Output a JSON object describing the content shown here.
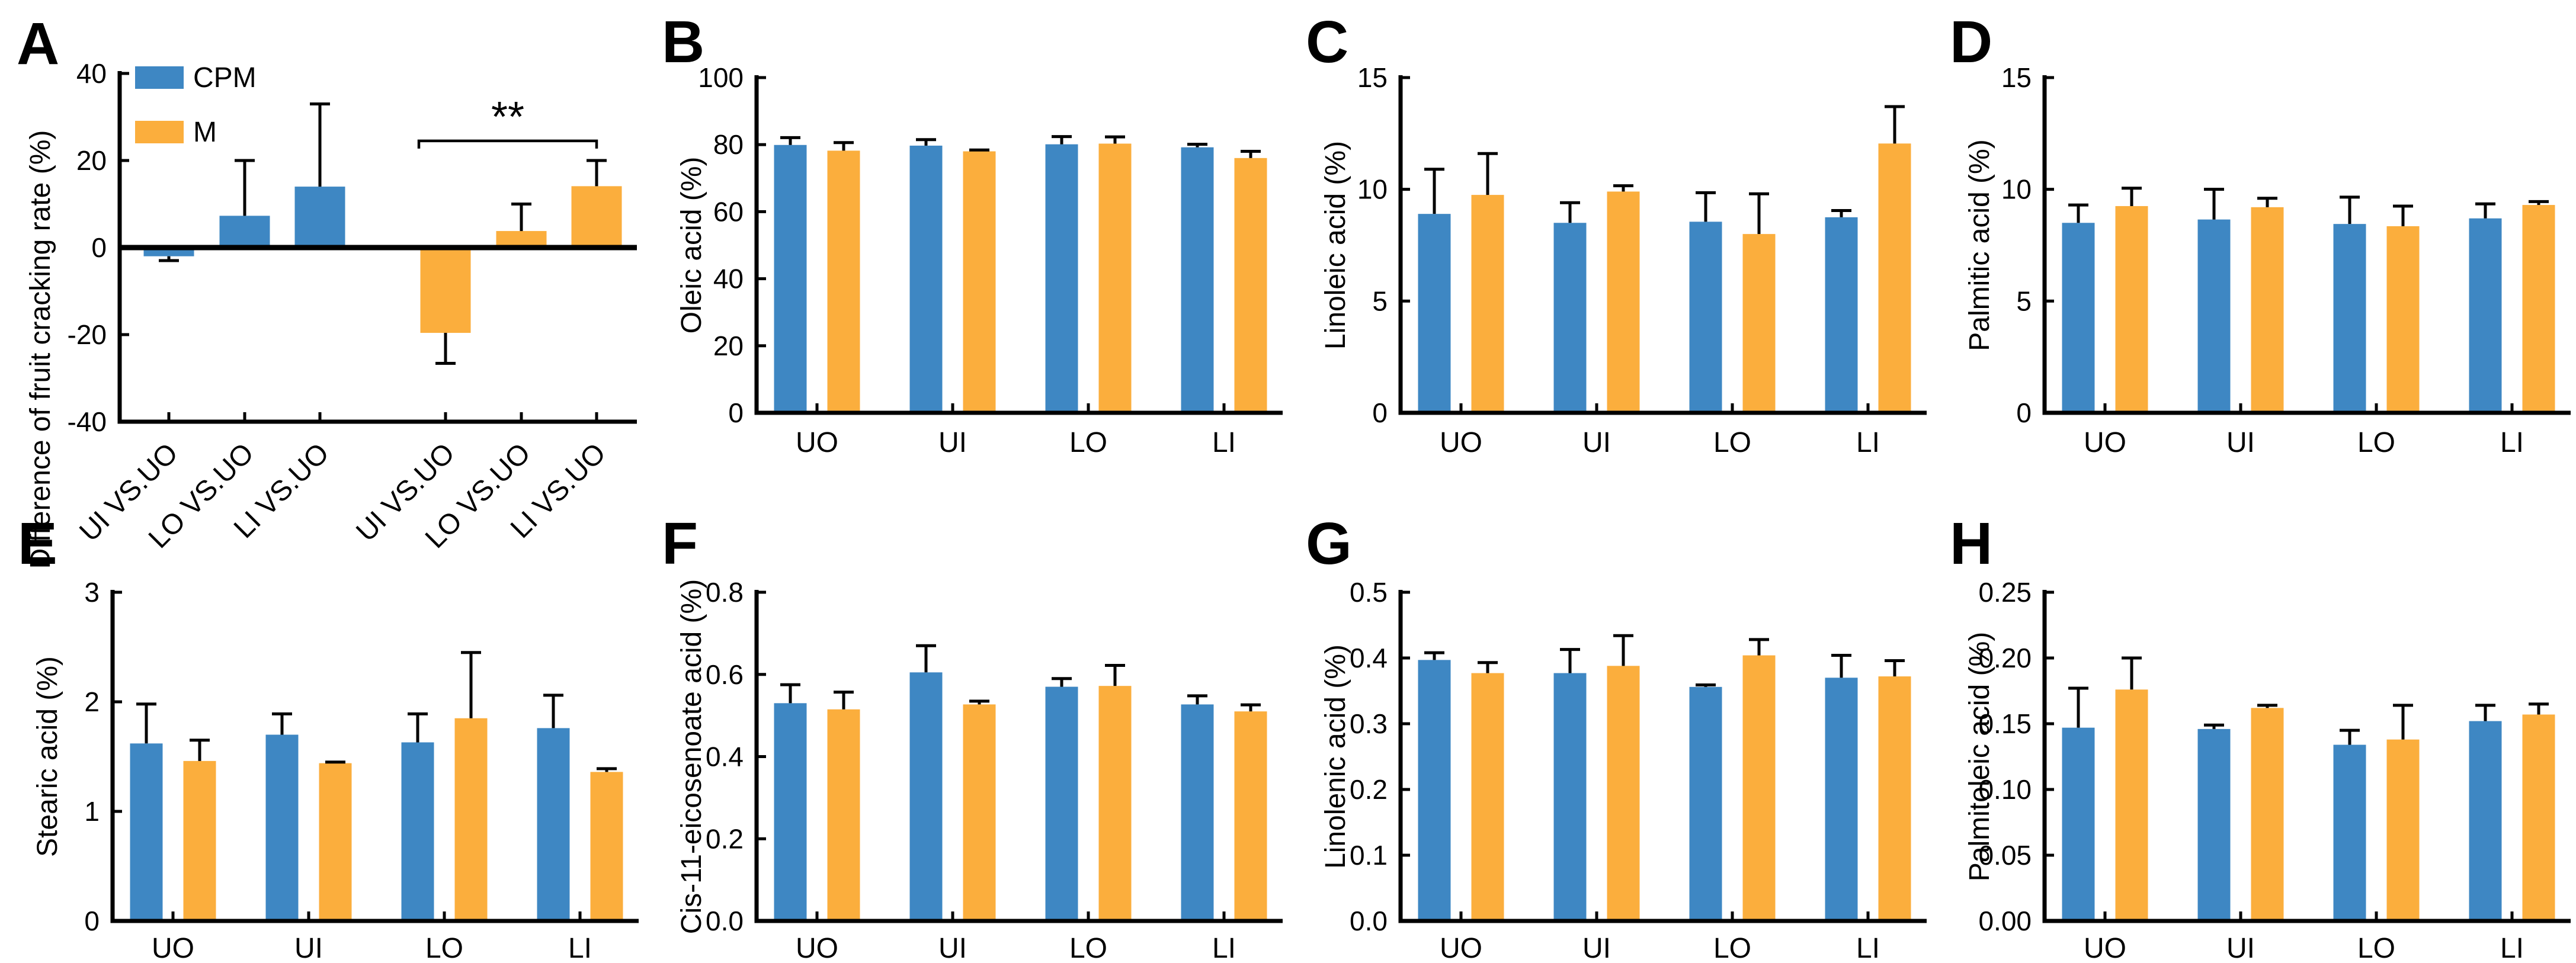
{
  "figure": {
    "background": "#ffffff",
    "axis_color": "#000000",
    "legend": [
      {
        "name": "CPM",
        "color": "#3E87C3"
      },
      {
        "name": "M",
        "color": "#FBAE3D"
      }
    ]
  },
  "chart_data": [
    {
      "panel": "A",
      "type": "bar",
      "ylabel": "Difference of fruit cracking rate (%)",
      "ylim": [
        -40,
        40
      ],
      "yticks": [
        -40,
        -20,
        0,
        20,
        40
      ],
      "ytick_labels": [
        "-40",
        "-20",
        "0",
        "20",
        "40"
      ],
      "categories": [
        "UI VS.UO",
        "LO VS.UO",
        "LI VS.UO",
        "UI VS.UO",
        "LO VS.UO",
        "LI VS.UO"
      ],
      "xtick_rotation": 45,
      "show_legend": true,
      "bars": [
        {
          "series": "CPM",
          "category": "UI VS.UO",
          "value": -2.0,
          "err": 1.0
        },
        {
          "series": "CPM",
          "category": "LO VS.UO",
          "value": 7.3,
          "err": 12.7
        },
        {
          "series": "CPM",
          "category": "LI VS.UO",
          "value": 14.0,
          "err": 19.0
        },
        {
          "series": "M",
          "category": "UI VS.UO",
          "value": -19.6,
          "err": 7.0
        },
        {
          "series": "M",
          "category": "LO VS.UO",
          "value": 3.8,
          "err": 6.2
        },
        {
          "series": "M",
          "category": "LI VS.UO",
          "value": 14.1,
          "err": 5.9
        }
      ],
      "significance": {
        "label": "**",
        "from_index": 3,
        "to_index": 5,
        "y_value": 24.5
      }
    },
    {
      "panel": "B",
      "type": "bar",
      "ylabel": "Oleic acid (%)",
      "ylim": [
        0,
        100
      ],
      "yticks": [
        0,
        20,
        40,
        60,
        80,
        100
      ],
      "ytick_labels": [
        "0",
        "20",
        "40",
        "60",
        "80",
        "100"
      ],
      "categories": [
        "UO",
        "UI",
        "LO",
        "LI"
      ],
      "series": [
        {
          "name": "CPM",
          "values": [
            79.9,
            79.7,
            80.1,
            79.2
          ],
          "errors": [
            2.2,
            1.8,
            2.3,
            0.9
          ]
        },
        {
          "name": "M",
          "values": [
            78.2,
            78.0,
            80.3,
            76.0
          ],
          "errors": [
            2.4,
            0.4,
            2.0,
            2.0
          ]
        }
      ]
    },
    {
      "panel": "C",
      "type": "bar",
      "ylabel": "Linoleic acid (%)",
      "ylim": [
        0,
        15
      ],
      "yticks": [
        0,
        5,
        10,
        15
      ],
      "ytick_labels": [
        "0",
        "5",
        "10",
        "15"
      ],
      "categories": [
        "UO",
        "UI",
        "LO",
        "LI"
      ],
      "series": [
        {
          "name": "CPM",
          "values": [
            8.9,
            8.5,
            8.55,
            8.75
          ],
          "errors": [
            2.0,
            0.9,
            1.3,
            0.3
          ]
        },
        {
          "name": "M",
          "values": [
            9.75,
            9.9,
            8.0,
            12.05
          ],
          "errors": [
            1.85,
            0.26,
            1.8,
            1.65
          ]
        }
      ]
    },
    {
      "panel": "D",
      "type": "bar",
      "ylabel": "Palmitic acid (%)",
      "ylim": [
        0,
        15
      ],
      "yticks": [
        0,
        5,
        10,
        15
      ],
      "ytick_labels": [
        "0",
        "5",
        "10",
        "15"
      ],
      "categories": [
        "UO",
        "UI",
        "LO",
        "LI"
      ],
      "series": [
        {
          "name": "CPM",
          "values": [
            8.5,
            8.65,
            8.45,
            8.7
          ],
          "errors": [
            0.8,
            1.35,
            1.2,
            0.65
          ]
        },
        {
          "name": "M",
          "values": [
            9.25,
            9.2,
            8.35,
            9.3
          ],
          "errors": [
            0.8,
            0.4,
            0.9,
            0.15
          ]
        }
      ]
    },
    {
      "panel": "E",
      "type": "bar",
      "ylabel": "Stearic acid (%)",
      "ylim": [
        0,
        3
      ],
      "yticks": [
        0,
        1,
        2,
        3
      ],
      "ytick_labels": [
        "0",
        "1",
        "2",
        "3"
      ],
      "categories": [
        "UO",
        "UI",
        "LO",
        "LI"
      ],
      "series": [
        {
          "name": "CPM",
          "values": [
            1.62,
            1.7,
            1.63,
            1.76
          ],
          "errors": [
            0.36,
            0.19,
            0.26,
            0.3
          ]
        },
        {
          "name": "M",
          "values": [
            1.46,
            1.44,
            1.85,
            1.36
          ],
          "errors": [
            0.19,
            0.01,
            0.6,
            0.03
          ]
        }
      ]
    },
    {
      "panel": "F",
      "type": "bar",
      "ylabel": "Cis-11-eicosenoate acid (%)",
      "ylim": [
        0,
        0.8
      ],
      "yticks": [
        0,
        0.2,
        0.4,
        0.6,
        0.8
      ],
      "ytick_labels": [
        "0.0",
        "0.2",
        "0.4",
        "0.6",
        "0.8"
      ],
      "categories": [
        "UO",
        "UI",
        "LO",
        "LI"
      ],
      "series": [
        {
          "name": "CPM",
          "values": [
            0.53,
            0.605,
            0.57,
            0.527
          ],
          "errors": [
            0.045,
            0.065,
            0.02,
            0.021
          ]
        },
        {
          "name": "M",
          "values": [
            0.515,
            0.527,
            0.572,
            0.51
          ],
          "errors": [
            0.042,
            0.008,
            0.05,
            0.016
          ]
        }
      ]
    },
    {
      "panel": "G",
      "type": "bar",
      "ylabel": "Linolenic acid (%)",
      "ylim": [
        0,
        0.5
      ],
      "yticks": [
        0,
        0.1,
        0.2,
        0.3,
        0.4,
        0.5
      ],
      "ytick_labels": [
        "0.0",
        "0.1",
        "0.2",
        "0.3",
        "0.4",
        "0.5"
      ],
      "categories": [
        "UO",
        "UI",
        "LO",
        "LI"
      ],
      "series": [
        {
          "name": "CPM",
          "values": [
            0.397,
            0.377,
            0.356,
            0.37
          ],
          "errors": [
            0.011,
            0.036,
            0.003,
            0.034
          ]
        },
        {
          "name": "M",
          "values": [
            0.377,
            0.388,
            0.404,
            0.372
          ],
          "errors": [
            0.016,
            0.046,
            0.024,
            0.024
          ]
        }
      ]
    },
    {
      "panel": "H",
      "type": "bar",
      "ylabel": "Palmitoleic acid (%)",
      "ylim": [
        0,
        0.25
      ],
      "yticks": [
        0,
        0.05,
        0.1,
        0.15,
        0.2,
        0.25
      ],
      "ytick_labels": [
        "0.00",
        "0.05",
        "0.10",
        "0.15",
        "0.20",
        "0.25"
      ],
      "categories": [
        "UO",
        "UI",
        "LO",
        "LI"
      ],
      "series": [
        {
          "name": "CPM",
          "values": [
            0.147,
            0.146,
            0.134,
            0.152
          ],
          "errors": [
            0.03,
            0.003,
            0.011,
            0.012
          ]
        },
        {
          "name": "M",
          "values": [
            0.176,
            0.162,
            0.138,
            0.157
          ],
          "errors": [
            0.024,
            0.002,
            0.026,
            0.008
          ]
        }
      ]
    }
  ]
}
